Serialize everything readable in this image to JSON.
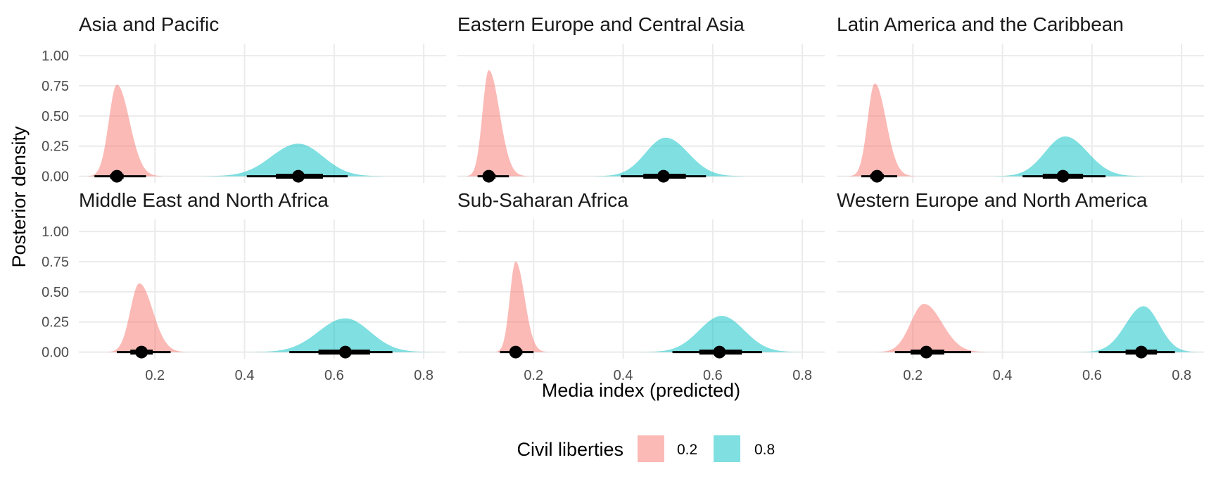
{
  "chart_data": {
    "type": "area",
    "ylabel": "Posterior density",
    "xlabel": "Media index (predicted)",
    "xlim": [
      0.03,
      0.85
    ],
    "ylim": [
      -0.055,
      1.1
    ],
    "x_ticks": [
      0.2,
      0.4,
      0.6,
      0.8
    ],
    "x_tick_labels": [
      "0.2",
      "0.4",
      "0.6",
      "0.8"
    ],
    "y_ticks": [
      0,
      0.25,
      0.5,
      0.75,
      1.0
    ],
    "y_tick_labels": [
      "0.00",
      "0.25",
      "0.50",
      "0.75",
      "1.00"
    ],
    "grid": true,
    "legend": {
      "title": "Civil liberties",
      "placement": "bottom",
      "entries": [
        {
          "label": "0.2",
          "color": "#F8766D"
        },
        {
          "label": "0.8",
          "color": "#00BFC4"
        }
      ]
    },
    "panels": [
      {
        "title": "Asia and Pacific",
        "series": [
          {
            "name": "0.2",
            "mode": 0.115,
            "peak": 0.76,
            "sl": 0.018,
            "sr": 0.028,
            "point": 0.115,
            "ci66": [
              0.1,
              0.13
            ],
            "ci95": [
              0.065,
              0.18
            ]
          },
          {
            "name": "0.8",
            "mode": 0.52,
            "peak": 0.27,
            "sl": 0.06,
            "sr": 0.055,
            "point": 0.52,
            "ci66": [
              0.47,
              0.575
            ],
            "ci95": [
              0.405,
              0.63
            ]
          }
        ]
      },
      {
        "title": "Eastern Europe and Central Asia",
        "series": [
          {
            "name": "0.2",
            "mode": 0.1,
            "peak": 0.88,
            "sl": 0.014,
            "sr": 0.024,
            "point": 0.1,
            "ci66": [
              0.09,
              0.115
            ],
            "ci95": [
              0.075,
              0.145
            ]
          },
          {
            "name": "0.8",
            "mode": 0.495,
            "peak": 0.32,
            "sl": 0.045,
            "sr": 0.05,
            "point": 0.49,
            "ci66": [
              0.445,
              0.54
            ],
            "ci95": [
              0.395,
              0.585
            ]
          }
        ]
      },
      {
        "title": "Latin America and the Caribbean",
        "series": [
          {
            "name": "0.2",
            "mode": 0.115,
            "peak": 0.77,
            "sl": 0.016,
            "sr": 0.025,
            "point": 0.12,
            "ci66": [
              0.105,
              0.135
            ],
            "ci95": [
              0.085,
              0.165
            ]
          },
          {
            "name": "0.8",
            "mode": 0.54,
            "peak": 0.33,
            "sl": 0.045,
            "sr": 0.05,
            "point": 0.535,
            "ci66": [
              0.49,
              0.58
            ],
            "ci95": [
              0.445,
              0.63
            ]
          }
        ]
      },
      {
        "title": "Middle East and North Africa",
        "series": [
          {
            "name": "0.2",
            "mode": 0.165,
            "peak": 0.57,
            "sl": 0.02,
            "sr": 0.03,
            "point": 0.17,
            "ci66": [
              0.145,
              0.195
            ],
            "ci95": [
              0.115,
              0.235
            ]
          },
          {
            "name": "0.8",
            "mode": 0.625,
            "peak": 0.28,
            "sl": 0.06,
            "sr": 0.055,
            "point": 0.625,
            "ci66": [
              0.565,
              0.68
            ],
            "ci95": [
              0.5,
              0.73
            ]
          }
        ]
      },
      {
        "title": "Sub-Saharan Africa",
        "series": [
          {
            "name": "0.2",
            "mode": 0.16,
            "peak": 0.75,
            "sl": 0.013,
            "sr": 0.02,
            "point": 0.16,
            "ci66": [
              0.148,
              0.175
            ],
            "ci95": [
              0.125,
              0.2
            ]
          },
          {
            "name": "0.8",
            "mode": 0.62,
            "peak": 0.3,
            "sl": 0.05,
            "sr": 0.05,
            "point": 0.615,
            "ci66": [
              0.57,
              0.665
            ],
            "ci95": [
              0.51,
              0.71
            ]
          }
        ]
      },
      {
        "title": "Western Europe and North America",
        "series": [
          {
            "name": "0.2",
            "mode": 0.225,
            "peak": 0.4,
            "sl": 0.03,
            "sr": 0.04,
            "point": 0.23,
            "ci66": [
              0.195,
              0.27
            ],
            "ci95": [
              0.16,
              0.33
            ]
          },
          {
            "name": "0.8",
            "mode": 0.715,
            "peak": 0.38,
            "sl": 0.04,
            "sr": 0.035,
            "point": 0.71,
            "ci66": [
              0.675,
              0.745
            ],
            "ci95": [
              0.615,
              0.785
            ]
          }
        ]
      }
    ]
  }
}
